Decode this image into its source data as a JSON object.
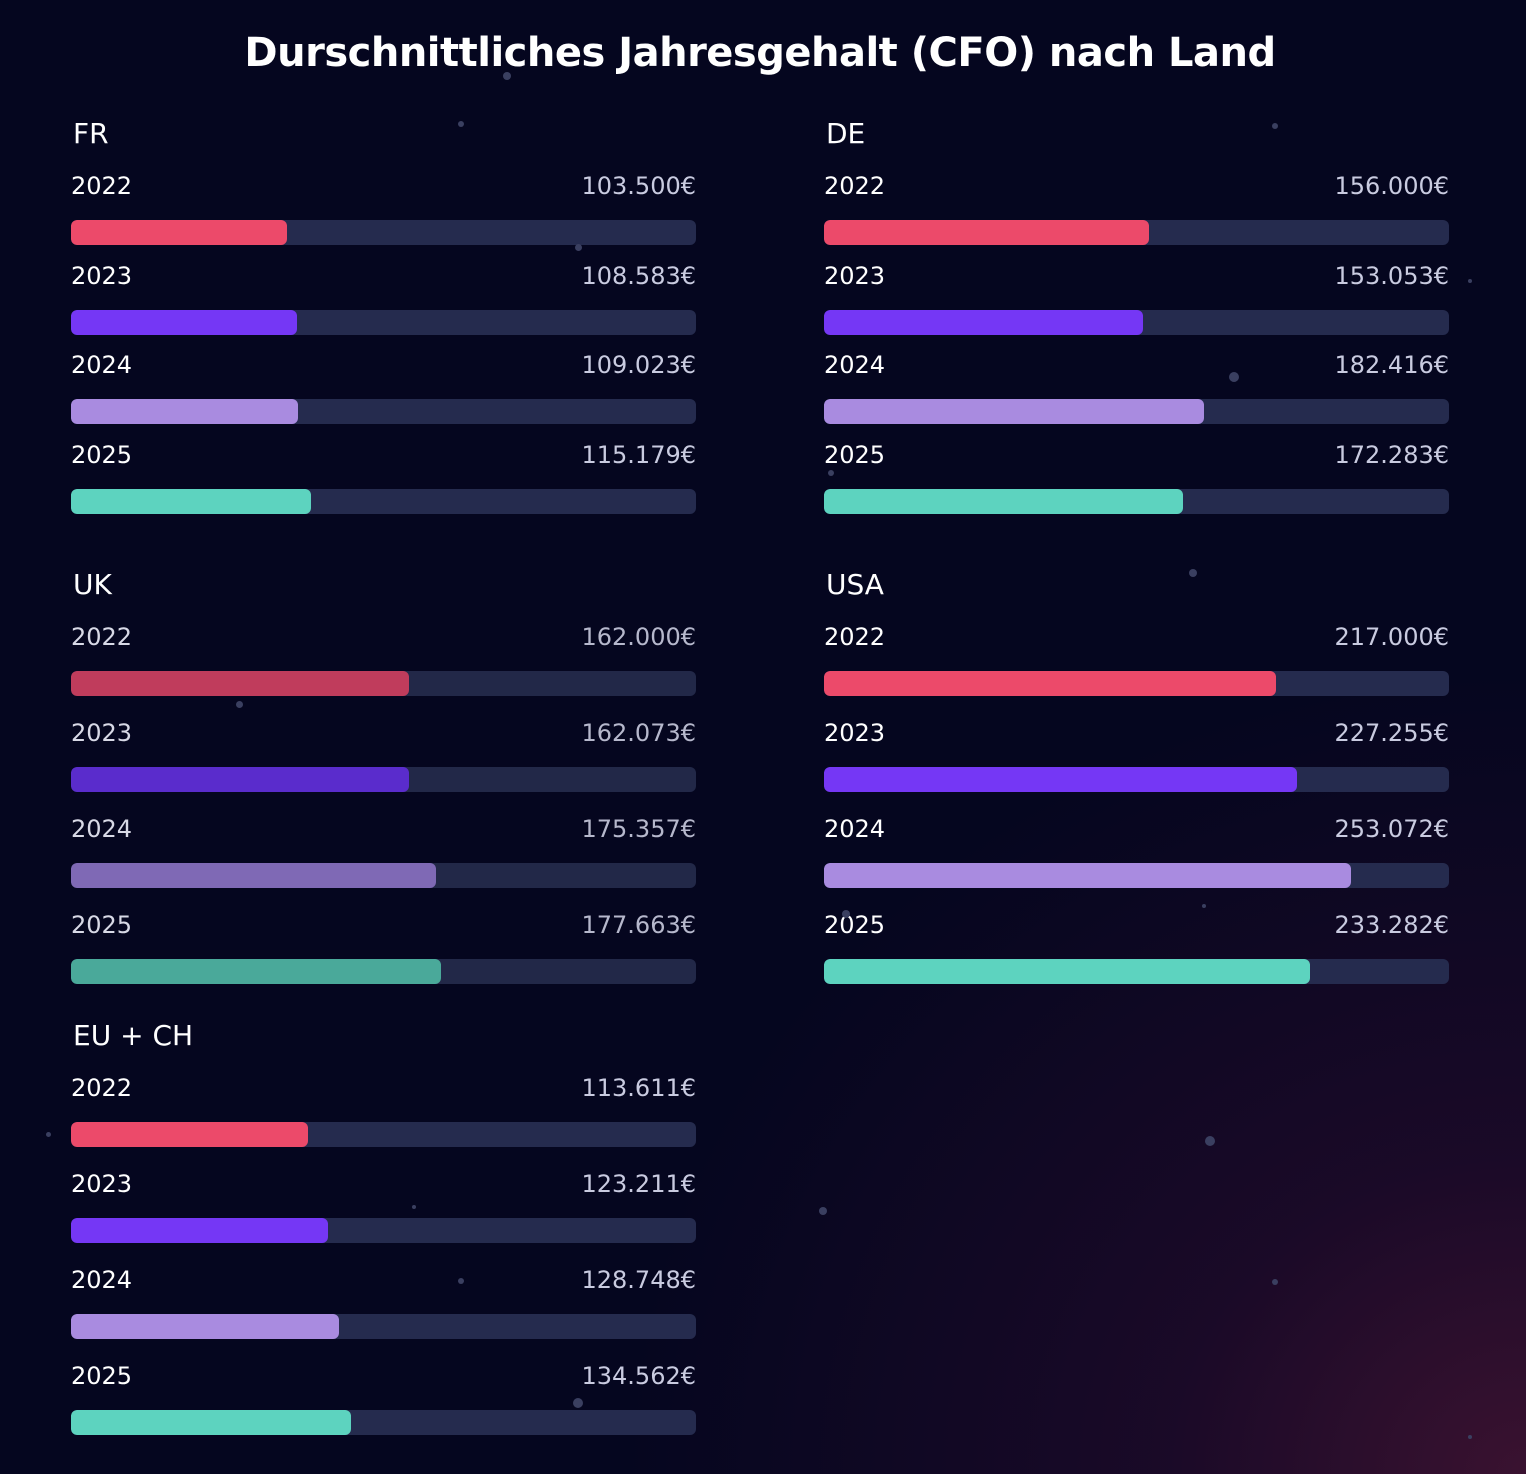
{
  "title": "Durschnittliches Jahresgehalt (CFO) nach Land",
  "colors": {
    "year_2022": "#ec4a6a",
    "year_2023": "#7537f5",
    "year_2024": "#a98be0",
    "year_2025": "#5dd3bf",
    "track": "#252b4e",
    "background": "#05061f"
  },
  "chart_data": {
    "type": "bar",
    "orientation": "horizontal",
    "title": "Durschnittliches Jahresgehalt (CFO) nach Land",
    "xlim": [
      0,
      300000
    ],
    "unit": "€",
    "groups": [
      {
        "name": "FR",
        "years": [
          "2022",
          "2023",
          "2024",
          "2025"
        ],
        "values": [
          103500,
          108583,
          109023,
          115179
        ],
        "labels": [
          "103.500€",
          "108.583€",
          "109.023€",
          "115.179€"
        ]
      },
      {
        "name": "DE",
        "years": [
          "2022",
          "2023",
          "2024",
          "2025"
        ],
        "values": [
          156000,
          153053,
          182416,
          172283
        ],
        "labels": [
          "156.000€",
          "153.053€",
          "182.416€",
          "172.283€"
        ]
      },
      {
        "name": "UK",
        "years": [
          "2022",
          "2023",
          "2024",
          "2025"
        ],
        "values": [
          162000,
          162073,
          175357,
          177663
        ],
        "labels": [
          "162.000€",
          "162.073€",
          "175.357€",
          "177.663€"
        ]
      },
      {
        "name": "USA",
        "years": [
          "2022",
          "2023",
          "2024",
          "2025"
        ],
        "values": [
          217000,
          227255,
          253072,
          233282
        ],
        "labels": [
          "217.000€",
          "227.255€",
          "253.072€",
          "233.282€"
        ]
      },
      {
        "name": "EU + CH",
        "years": [
          "2022",
          "2023",
          "2024",
          "2025"
        ],
        "values": [
          113611,
          123211,
          128748,
          134562
        ],
        "labels": [
          "113.611€",
          "123.211€",
          "128.748€",
          "134.562€"
        ]
      }
    ]
  }
}
